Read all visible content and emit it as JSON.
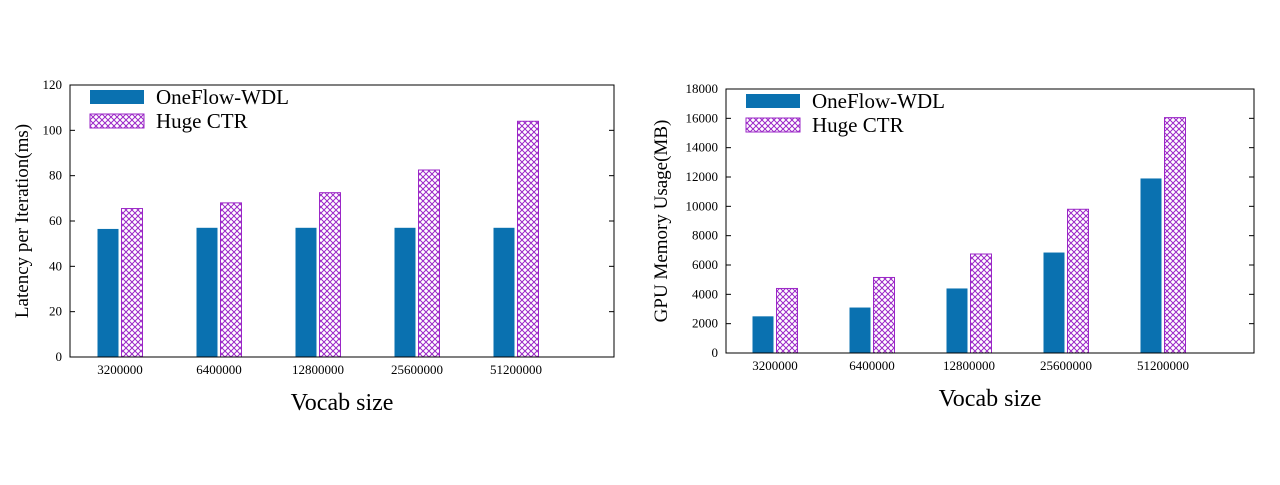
{
  "colors": {
    "oneflow": "#0a71b0",
    "hugectr": "#9b27c7"
  },
  "chart_data": [
    {
      "type": "bar",
      "categories": [
        "3200000",
        "6400000",
        "12800000",
        "25600000",
        "51200000"
      ],
      "series": [
        {
          "name": "OneFlow-WDL",
          "values": [
            56.5,
            57,
            57,
            57,
            57
          ]
        },
        {
          "name": "Huge CTR",
          "values": [
            65.5,
            68,
            72.5,
            82.5,
            104
          ]
        }
      ],
      "xlabel": "Vocab size",
      "ylabel": "Latency per Iteration(ms)",
      "ylim": [
        0,
        120
      ],
      "yticks": [
        0,
        20,
        40,
        60,
        80,
        100,
        120
      ],
      "legend": "top-left",
      "grid": false
    },
    {
      "type": "bar",
      "categories": [
        "3200000",
        "6400000",
        "12800000",
        "25600000",
        "51200000"
      ],
      "series": [
        {
          "name": "OneFlow-WDL",
          "values": [
            2500,
            3100,
            4400,
            6850,
            11900
          ]
        },
        {
          "name": "Huge CTR",
          "values": [
            4400,
            5150,
            6750,
            9800,
            16050
          ]
        }
      ],
      "xlabel": "Vocab size",
      "ylabel": "GPU Memory Usage(MB)",
      "ylim": [
        0,
        18000
      ],
      "yticks": [
        0,
        2000,
        4000,
        6000,
        8000,
        10000,
        12000,
        14000,
        16000,
        18000
      ],
      "legend": "top-left",
      "grid": false
    }
  ]
}
